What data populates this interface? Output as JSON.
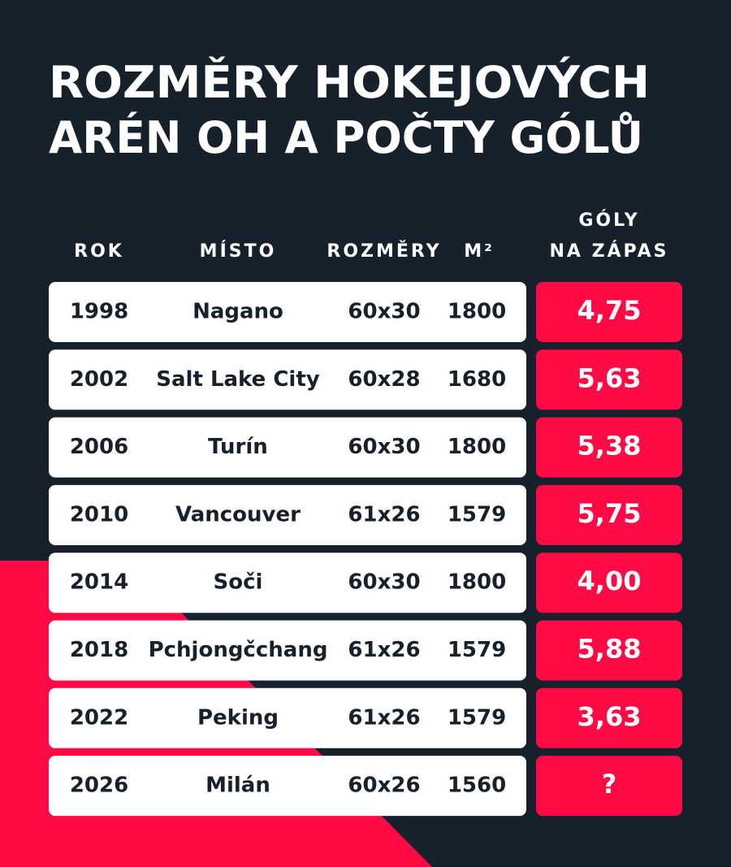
{
  "title": [
    "ROZMĚRY HOKEJOVÝCH",
    "ARÉN OH A POČTY GÓLŮ"
  ],
  "table": {
    "headers": [
      "ROK",
      "MÍSTO",
      "ROZMĚRY",
      "M²",
      [
        "GÓLY",
        "NA ZÁPAS"
      ]
    ],
    "rows": [
      [
        "1998",
        "Nagano",
        "60x30",
        "1800",
        "4,75"
      ],
      [
        "2002",
        "Salt Lake City",
        "60x28",
        "1680",
        "5,63"
      ],
      [
        "2006",
        "Turín",
        "60x30",
        "1800",
        "5,38"
      ],
      [
        "2010",
        "Vancouver",
        "61x26",
        "1579",
        "5,75"
      ],
      [
        "2014",
        "Soči",
        "60x30",
        "1800",
        "4,00"
      ],
      [
        "2018",
        "Pchjongčchang",
        "61x26",
        "1579",
        "5,88"
      ],
      [
        "2022",
        "Peking",
        "61x26",
        "1579",
        "3,63"
      ],
      [
        "2026",
        "Milán",
        "60x26",
        "1560",
        "?"
      ]
    ]
  }
}
